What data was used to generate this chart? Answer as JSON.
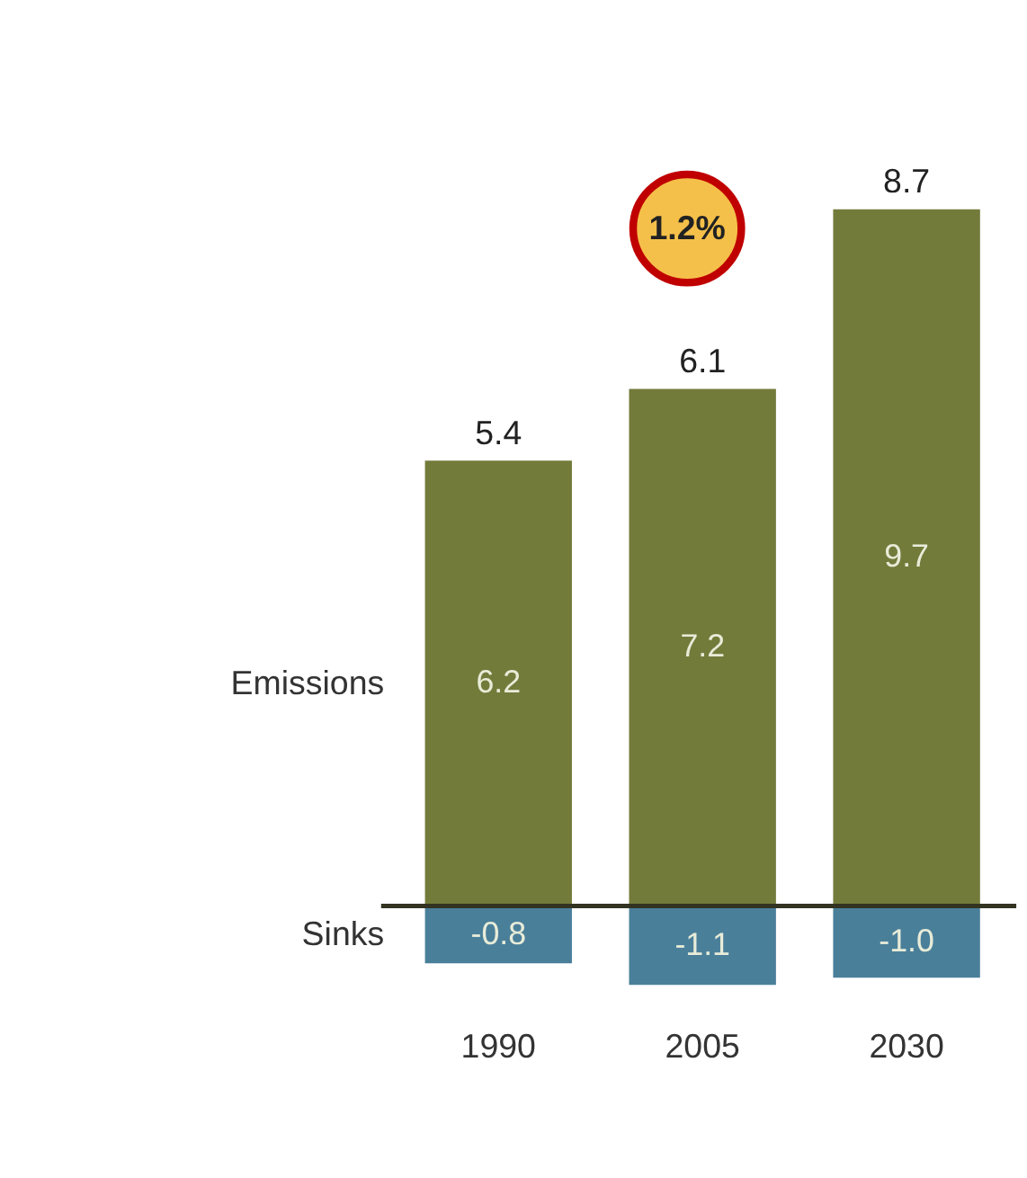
{
  "chart_data": {
    "type": "bar",
    "stacked": true,
    "categories": [
      "1990",
      "2005",
      "2030"
    ],
    "series": [
      {
        "name": "Emissions",
        "color": "#737b3b",
        "values": [
          6.2,
          7.2,
          9.7
        ],
        "value_labels": [
          "6.2",
          "7.2",
          "9.7"
        ]
      },
      {
        "name": "Sinks",
        "color": "#4a7f9a",
        "values": [
          -0.8,
          -1.1,
          -1.0
        ],
        "value_labels": [
          "-0.8",
          "-1.1",
          "-1.0"
        ]
      }
    ],
    "totals": [
      "5.4",
      "6.1",
      "8.7"
    ],
    "annotations": [
      "1.2%"
    ],
    "legend": false,
    "grid": false
  }
}
